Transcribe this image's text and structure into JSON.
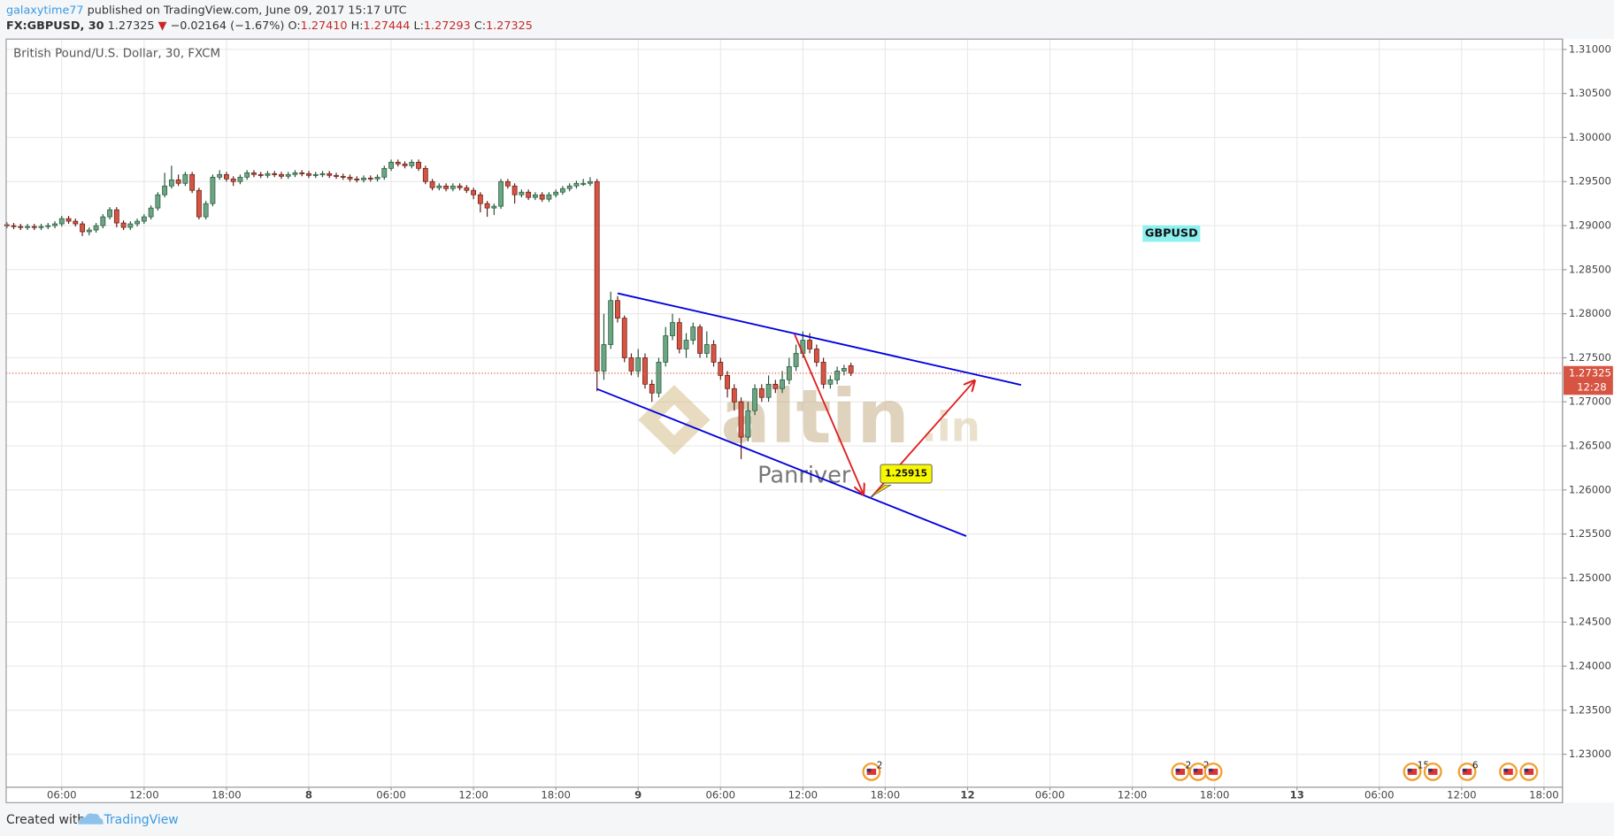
{
  "header": {
    "author": "galaxytime77",
    "published": "published on TradingView.com, June 09, 2017 15:17 UTC",
    "symbol": "FX:GBPUSD, 30",
    "last": "1.27325",
    "change_arrow": "▼",
    "change": "−0.02164 (−1.67%)",
    "o_label": "O:",
    "o": "1.27410",
    "h_label": "H:",
    "h": "1.27444",
    "l_label": "L:",
    "l": "1.27293",
    "c_label": "C:",
    "c": "1.27325"
  },
  "chart_data": {
    "type": "candlestick",
    "title": "British Pound/U.S. Dollar, 30, FXCM",
    "x": [
      -22,
      -21.5,
      -21,
      -20.5,
      -20,
      -19.5,
      -19,
      -18.5,
      -18,
      -17.5,
      -17,
      -16.5,
      -16,
      -15.5,
      -15,
      -14.5,
      -14,
      -13.5,
      -13,
      -12.5,
      -12,
      -11.5,
      -11,
      -10.5,
      -10,
      -9.5,
      -9,
      -8.5,
      -8,
      -7.5,
      -7,
      -6.5,
      -6,
      -5.5,
      -5,
      -4.5,
      -4,
      -3.5,
      -3,
      -2.5,
      -2,
      -1.5,
      -1,
      -0.5,
      0,
      0.5,
      1,
      1.5,
      2,
      2.5,
      3,
      3.5,
      4,
      4.5,
      5,
      5.5,
      6,
      6.5,
      7,
      7.5,
      8,
      8.5,
      9,
      9.5,
      10,
      10.5,
      11,
      11.5,
      12,
      12.5,
      13,
      13.5,
      14,
      14.5,
      15,
      15.5,
      16,
      16.5,
      17,
      17.5,
      18,
      18.5,
      19,
      19.5,
      20,
      20.5,
      21,
      21.5,
      22,
      22.5,
      23,
      23.5,
      24,
      24.5,
      25,
      25.5,
      26,
      26.5,
      27,
      27.5,
      28,
      28.5,
      29,
      29.5,
      30,
      30.5,
      31,
      31.5,
      32,
      32.5,
      33,
      33.5,
      34,
      34.5,
      35,
      35.5,
      36,
      36.5,
      37,
      37.5,
      38,
      38.5,
      39,
      39.5
    ],
    "open": [
      1.2901,
      1.29,
      1.2899,
      1.2898,
      1.2899,
      1.2898,
      1.2899,
      1.29,
      1.2902,
      1.2908,
      1.2905,
      1.2902,
      1.2893,
      1.2895,
      1.29,
      1.291,
      1.2918,
      1.2903,
      1.2898,
      1.2902,
      1.2905,
      1.291,
      1.292,
      1.2935,
      1.2945,
      1.2952,
      1.2948,
      1.2958,
      1.294,
      1.291,
      1.2925,
      1.2955,
      1.2958,
      1.2953,
      1.295,
      1.2955,
      1.296,
      1.2958,
      1.2957,
      1.2959,
      1.2958,
      1.2956,
      1.2958,
      1.296,
      1.2959,
      1.2957,
      1.2958,
      1.2959,
      1.2957,
      1.2956,
      1.2955,
      1.2953,
      1.2952,
      1.2954,
      1.2953,
      1.2955,
      1.2965,
      1.2972,
      1.297,
      1.2968,
      1.2972,
      1.2965,
      1.295,
      1.2943,
      1.2945,
      1.2942,
      1.2945,
      1.2943,
      1.294,
      1.2935,
      1.2925,
      1.292,
      1.2922,
      1.295,
      1.2945,
      1.2935,
      1.2938,
      1.2932,
      1.2935,
      1.293,
      1.2935,
      1.2938,
      1.2942,
      1.2945,
      1.2948,
      1.2948,
      1.295,
      1.2735,
      1.2765,
      1.2815,
      1.2795,
      1.275,
      1.2735,
      1.275,
      1.272,
      1.271,
      1.2745,
      1.2775,
      1.279,
      1.276,
      1.277,
      1.2785,
      1.2755,
      1.2765,
      1.2745,
      1.273,
      1.2715,
      1.27,
      1.266,
      1.269,
      1.2715,
      1.2705,
      1.272,
      1.2715,
      1.2725,
      1.274,
      1.2755,
      1.277,
      1.276,
      1.2745,
      1.272,
      1.2725,
      1.2735,
      1.2741
    ],
    "high": [
      1.2904,
      1.2903,
      1.2902,
      1.2902,
      1.2902,
      1.2902,
      1.2903,
      1.2905,
      1.2911,
      1.2911,
      1.2908,
      1.2905,
      1.2898,
      1.2903,
      1.2913,
      1.2921,
      1.2921,
      1.2906,
      1.2905,
      1.2908,
      1.2913,
      1.2923,
      1.2938,
      1.296,
      1.2968,
      1.2958,
      1.2961,
      1.2961,
      1.2943,
      1.2928,
      1.2958,
      1.2963,
      1.2961,
      1.2956,
      1.2958,
      1.2963,
      1.2963,
      1.2961,
      1.2962,
      1.2962,
      1.2961,
      1.2961,
      1.2963,
      1.2963,
      1.2962,
      1.2961,
      1.2962,
      1.2962,
      1.296,
      1.2959,
      1.2958,
      1.2956,
      1.2957,
      1.2957,
      1.2958,
      1.2968,
      1.2975,
      1.2975,
      1.2973,
      1.2975,
      1.2975,
      1.2968,
      1.2953,
      1.2948,
      1.2948,
      1.2948,
      1.2948,
      1.2946,
      1.2943,
      1.2938,
      1.2928,
      1.2925,
      1.2953,
      1.2953,
      1.2948,
      1.2941,
      1.2941,
      1.2938,
      1.2938,
      1.2938,
      1.2941,
      1.2945,
      1.2948,
      1.2951,
      1.2953,
      1.2955,
      1.2953,
      1.28,
      1.2825,
      1.282,
      1.2798,
      1.2755,
      1.276,
      1.2755,
      1.2725,
      1.275,
      1.2785,
      1.28,
      1.2795,
      1.2778,
      1.279,
      1.2788,
      1.278,
      1.277,
      1.275,
      1.2735,
      1.272,
      1.2705,
      1.27,
      1.272,
      1.272,
      1.273,
      1.2725,
      1.2735,
      1.275,
      1.2765,
      1.278,
      1.2778,
      1.2765,
      1.275,
      1.273,
      1.274,
      1.2742,
      1.27444
    ],
    "low": [
      1.2897,
      1.2896,
      1.2895,
      1.2895,
      1.2895,
      1.2895,
      1.2896,
      1.2897,
      1.2899,
      1.2902,
      1.2899,
      1.2888,
      1.2889,
      1.2892,
      1.2897,
      1.2907,
      1.2898,
      1.2895,
      1.2895,
      1.2899,
      1.2902,
      1.2907,
      1.2917,
      1.2932,
      1.2942,
      1.2945,
      1.2945,
      1.2937,
      1.2907,
      1.2907,
      1.2922,
      1.2952,
      1.295,
      1.2945,
      1.2947,
      1.2952,
      1.2955,
      1.2954,
      1.2954,
      1.2955,
      1.2953,
      1.2953,
      1.2955,
      1.2956,
      1.2954,
      1.2954,
      1.2955,
      1.2954,
      1.2953,
      1.2952,
      1.295,
      1.2949,
      1.2949,
      1.295,
      1.295,
      1.2952,
      1.2962,
      1.2967,
      1.2965,
      1.2965,
      1.2962,
      1.2947,
      1.294,
      1.294,
      1.2939,
      1.2939,
      1.294,
      1.2937,
      1.293,
      1.2915,
      1.291,
      1.2912,
      1.2919,
      1.2942,
      1.2925,
      1.2932,
      1.2929,
      1.2929,
      1.2927,
      1.2927,
      1.2932,
      1.2935,
      1.2939,
      1.2942,
      1.2945,
      1.2945,
      1.2712,
      1.2725,
      1.276,
      1.279,
      1.2745,
      1.273,
      1.2728,
      1.2715,
      1.27,
      1.2705,
      1.274,
      1.277,
      1.2755,
      1.275,
      1.2765,
      1.275,
      1.275,
      1.274,
      1.2725,
      1.2705,
      1.269,
      1.2635,
      1.2655,
      1.2685,
      1.27,
      1.27,
      1.271,
      1.271,
      1.272,
      1.2735,
      1.275,
      1.2755,
      1.274,
      1.2715,
      1.2715,
      1.272,
      1.273,
      1.27293
    ],
    "close": [
      1.29,
      1.2899,
      1.2898,
      1.2899,
      1.2898,
      1.2899,
      1.29,
      1.2902,
      1.2908,
      1.2905,
      1.2902,
      1.2893,
      1.2895,
      1.29,
      1.291,
      1.2918,
      1.2903,
      1.2898,
      1.2902,
      1.2905,
      1.291,
      1.292,
      1.2935,
      1.2945,
      1.2952,
      1.2948,
      1.2958,
      1.294,
      1.291,
      1.2925,
      1.2955,
      1.2958,
      1.2953,
      1.295,
      1.2955,
      1.296,
      1.2958,
      1.2957,
      1.2959,
      1.2958,
      1.2956,
      1.2958,
      1.296,
      1.2959,
      1.2957,
      1.2958,
      1.2959,
      1.2957,
      1.2956,
      1.2955,
      1.2953,
      1.2952,
      1.2954,
      1.2953,
      1.2955,
      1.2965,
      1.2972,
      1.297,
      1.2968,
      1.2972,
      1.2965,
      1.295,
      1.2943,
      1.2945,
      1.2942,
      1.2945,
      1.2943,
      1.294,
      1.2935,
      1.2925,
      1.292,
      1.2922,
      1.295,
      1.2945,
      1.2935,
      1.2938,
      1.2932,
      1.2935,
      1.293,
      1.2935,
      1.2938,
      1.2942,
      1.2945,
      1.2948,
      1.2948,
      1.295,
      1.2735,
      1.2765,
      1.2815,
      1.2795,
      1.275,
      1.2735,
      1.275,
      1.272,
      1.271,
      1.2745,
      1.2775,
      1.279,
      1.276,
      1.277,
      1.2785,
      1.2755,
      1.2765,
      1.2745,
      1.273,
      1.2715,
      1.27,
      1.266,
      1.269,
      1.2715,
      1.2705,
      1.272,
      1.2715,
      1.2725,
      1.274,
      1.2755,
      1.277,
      1.276,
      1.2745,
      1.272,
      1.2725,
      1.2735,
      1.2738,
      1.27325
    ],
    "up_color": "#6ba583",
    "down_color": "#d75442",
    "up_border": "#225437",
    "down_border": "#5b1a13",
    "xlim": [
      -22.05,
      91.35
    ],
    "xticks": [
      {
        "value": -18,
        "label": "06:00"
      },
      {
        "value": -12,
        "label": "12:00"
      },
      {
        "value": -6,
        "label": "18:00"
      },
      {
        "value": 0,
        "label": "8"
      },
      {
        "value": 6,
        "label": "06:00"
      },
      {
        "value": 12,
        "label": "12:00"
      },
      {
        "value": 18,
        "label": "18:00"
      },
      {
        "value": 24,
        "label": "9"
      },
      {
        "value": 30,
        "label": "06:00"
      },
      {
        "value": 36,
        "label": "12:00"
      },
      {
        "value": 42,
        "label": "18:00"
      },
      {
        "value": 48,
        "label": "12"
      },
      {
        "value": 54,
        "label": "06:00"
      },
      {
        "value": 60,
        "label": "12:00"
      },
      {
        "value": 66,
        "label": "18:00"
      },
      {
        "value": 72,
        "label": "13"
      },
      {
        "value": 78,
        "label": "06:00"
      },
      {
        "value": 84,
        "label": "12:00"
      },
      {
        "value": 90,
        "label": "18:00"
      }
    ],
    "ylim": [
      1.22626,
      1.31117
    ],
    "yticks": [
      {
        "value": 1.31,
        "label": "1.31000"
      },
      {
        "value": 1.305,
        "label": "1.30500"
      },
      {
        "value": 1.3,
        "label": "1.30000"
      },
      {
        "value": 1.295,
        "label": "1.29500"
      },
      {
        "value": 1.29,
        "label": "1.29000"
      },
      {
        "value": 1.285,
        "label": "1.28500"
      },
      {
        "value": 1.28,
        "label": "1.28000"
      },
      {
        "value": 1.275,
        "label": "1.27500"
      },
      {
        "value": 1.27,
        "label": "1.27000"
      },
      {
        "value": 1.265,
        "label": "1.26500"
      },
      {
        "value": 1.26,
        "label": "1.26000"
      },
      {
        "value": 1.255,
        "label": "1.25500"
      },
      {
        "value": 1.25,
        "label": "1.25000"
      },
      {
        "value": 1.245,
        "label": "1.24500"
      },
      {
        "value": 1.24,
        "label": "1.24000"
      },
      {
        "value": 1.235,
        "label": "1.23500"
      },
      {
        "value": 1.23,
        "label": "1.23000"
      }
    ],
    "grid": true,
    "last_price": 1.27325,
    "countdown": "12:28",
    "last_color": "#d75442",
    "drawings": [
      {
        "color": "#0000e0",
        "from": [
          22.5,
          1.28232
        ],
        "to": [
          51.9,
          1.27192
        ],
        "arrow": false
      },
      {
        "color": "#0000e0",
        "from": [
          21,
          1.27146
        ],
        "to": [
          47.9,
          1.25476
        ],
        "arrow": false
      },
      {
        "color": "#e02020",
        "from": [
          35.4,
          1.27765
        ],
        "to": [
          40.4,
          1.25954
        ],
        "arrow": true
      },
      {
        "color": "#e02020",
        "from": [
          41,
          1.2592
        ],
        "to": [
          48.5,
          1.27239
        ],
        "arrow": true
      }
    ],
    "callout": {
      "x": 40.9,
      "value": 1.25915
    },
    "symbol_label": "GBPUSD",
    "events": [
      {
        "x": 41,
        "label": "2"
      },
      {
        "x": 63.5,
        "label": "2"
      },
      {
        "x": 64.8,
        "label": "2"
      },
      {
        "x": 65.9,
        "label": null
      },
      {
        "x": 80.4,
        "label": "15"
      },
      {
        "x": 81.9,
        "label": null
      },
      {
        "x": 84.4,
        "label": "6"
      },
      {
        "x": 87.4,
        "label": null
      },
      {
        "x": 88.9,
        "label": null
      }
    ]
  },
  "watermark": {
    "brand": "altin",
    "suffix": ".in",
    "author": "Panriver"
  },
  "footer": {
    "created": "Created with",
    "brand": "TradingView"
  }
}
